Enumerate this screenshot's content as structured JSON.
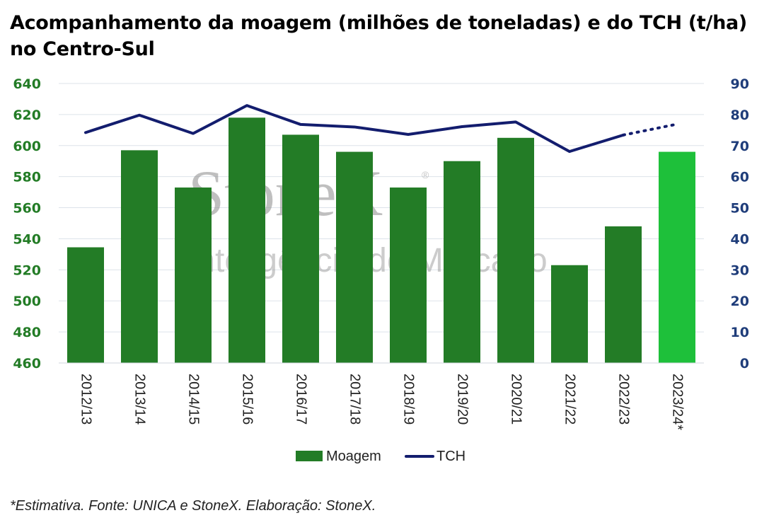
{
  "chart_data": {
    "type": "bar",
    "title": "Acompanhamento da moagem (milhões de toneladas) e do TCH (t/ha) no Centro-Sul",
    "categories": [
      "2012/13",
      "2013/14",
      "2014/15",
      "2015/16",
      "2016/17",
      "2017/18",
      "2018/19",
      "2019/20",
      "2020/21",
      "2021/22",
      "2022/23",
      "2023/24*"
    ],
    "series": [
      {
        "name": "Moagem",
        "type": "bar",
        "axis": "left",
        "values": [
          534.5,
          597,
          573,
          618,
          607,
          596,
          573,
          590,
          605,
          523,
          548,
          596
        ],
        "colors": [
          "#237c26",
          "#237c26",
          "#237c26",
          "#237c26",
          "#237c26",
          "#237c26",
          "#237c26",
          "#237c26",
          "#237c26",
          "#237c26",
          "#237c26",
          "#1ec03a"
        ]
      },
      {
        "name": "TCH",
        "type": "line",
        "axis": "right",
        "values": [
          74.2,
          79.8,
          73.9,
          82.9,
          76.8,
          76.0,
          73.6,
          76.1,
          77.6,
          68.1,
          73.4,
          76.9
        ],
        "estimated_from_index": 10,
        "color": "#131d6e"
      }
    ],
    "ylim_left": [
      460,
      640
    ],
    "yticks_left": [
      "460",
      "480",
      "500",
      "520",
      "540",
      "560",
      "580",
      "600",
      "620",
      "640"
    ],
    "ylim_right": [
      0,
      90
    ],
    "yticks_right": [
      "0",
      "10",
      "20",
      "30",
      "40",
      "50",
      "60",
      "70",
      "80",
      "90"
    ],
    "left_axis_color": "#237c26",
    "right_axis_color": "#1f3d7a",
    "grid": true,
    "legend_position": "bottom",
    "xlabel": "",
    "ylabel": ""
  },
  "watermark": {
    "brand": "StoneX",
    "registered": "®",
    "subtitle": "Inteligência de Mercado"
  },
  "footnote": "*Estimativa. Fonte: UNICA e StoneX. Elaboração: StoneX."
}
